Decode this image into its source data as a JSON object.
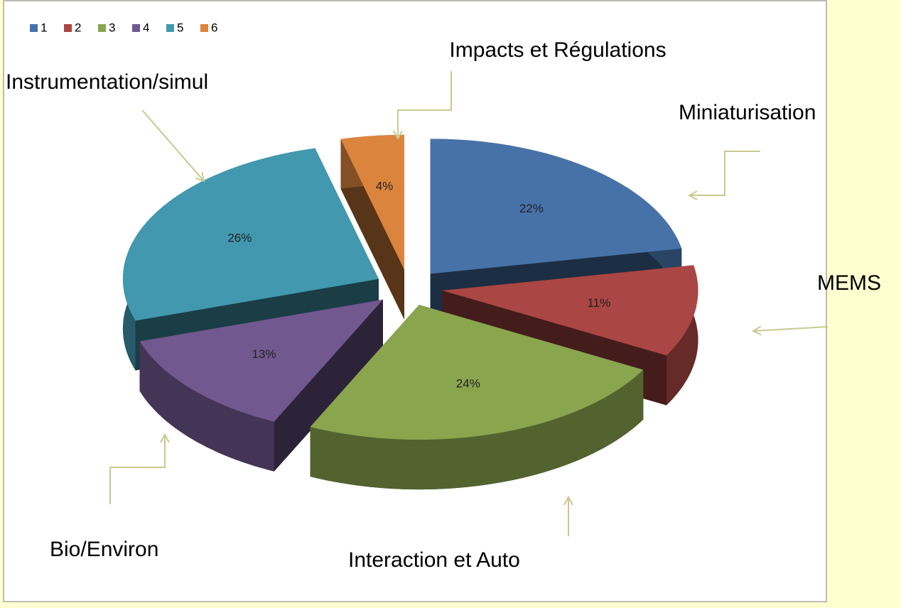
{
  "chart_data": {
    "type": "pie3d",
    "categories": [
      "1",
      "2",
      "3",
      "4",
      "5",
      "6"
    ],
    "values": [
      22,
      11,
      24,
      13,
      26,
      4
    ],
    "value_labels": [
      "22%",
      "11%",
      "24%",
      "13%",
      "26%",
      "4%"
    ],
    "colors": [
      "#4672a8",
      "#aa4643",
      "#89a54e",
      "#71588f",
      "#4198af",
      "#db843d"
    ],
    "legend": "top-left",
    "annotations": [
      "Miniaturisation",
      "MEMS",
      "Interaction et Auto",
      "Bio/Environ",
      "Instrumentation/simul",
      "Impacts et Régulations"
    ]
  }
}
